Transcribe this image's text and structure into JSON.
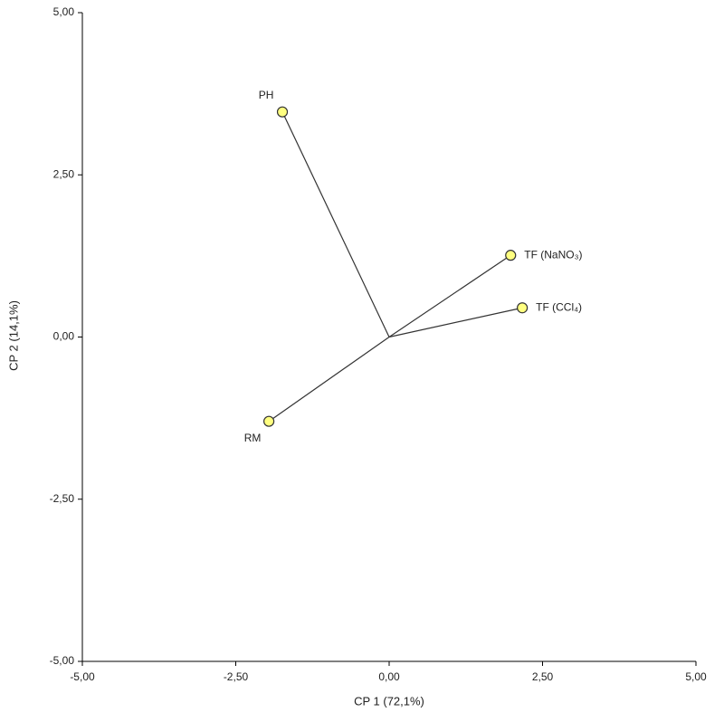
{
  "chart_data": {
    "type": "biplot",
    "x_label": "CP 1 (72,1%)",
    "y_label": "CP 2 (14,1%)",
    "labels": [
      "PH",
      "TF (NaNO₃)",
      "TF (CCl₄)",
      "RM"
    ],
    "x": [
      -1.74,
      1.98,
      2.17,
      -1.96
    ],
    "values": [
      3.47,
      1.26,
      0.45,
      -1.3
    ],
    "color": "#ffff80",
    "xlim": [
      -5,
      5
    ],
    "xticks": [
      {
        "value": -5,
        "label": "-5,00"
      },
      {
        "value": -2.5,
        "label": "-2,50"
      },
      {
        "value": 0,
        "label": "0,00"
      },
      {
        "value": 2.5,
        "label": "2,50"
      },
      {
        "value": 5,
        "label": "5,00"
      }
    ],
    "ylim": [
      -5,
      5
    ],
    "yticks": [
      {
        "value": -5,
        "label": "-5,00"
      },
      {
        "value": -2.5,
        "label": "-2,50"
      },
      {
        "value": 0,
        "label": "0,00"
      },
      {
        "value": 2.5,
        "label": "2,50"
      },
      {
        "value": 5,
        "label": "5,00"
      }
    ]
  }
}
